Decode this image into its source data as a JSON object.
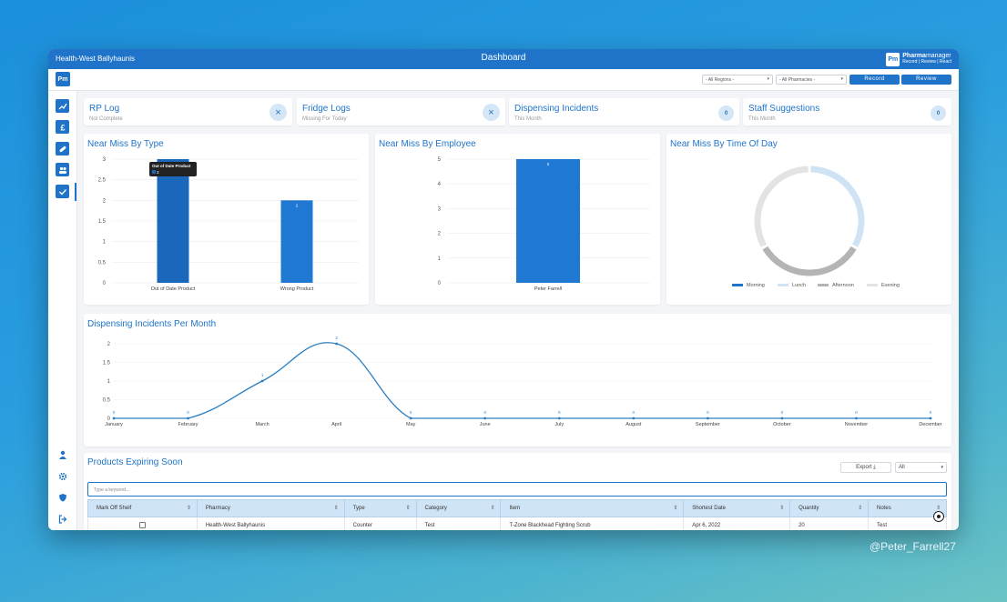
{
  "titlebar": {
    "org": "Health-West Ballyhaunis",
    "title": "Dashboard",
    "brand_logo": "Pm",
    "brand_name_bold": "Pharma",
    "brand_name_rest": "manager",
    "brand_tagline": "Record | Review | React"
  },
  "toolbar": {
    "logo": "Pm",
    "regions": "- All Regions -",
    "pharmacies": "- All Pharmacies -",
    "record": "Record",
    "review": "Review"
  },
  "sidebar": {
    "top": [
      "trend-icon",
      "pound-icon",
      "pill-icon",
      "users-icon",
      "check-icon"
    ],
    "bottom": [
      "user-icon",
      "gear-icon",
      "shield-icon",
      "logout-icon"
    ]
  },
  "stats": [
    {
      "label": "RP Log",
      "sub": "Not Complete",
      "badge": "×"
    },
    {
      "label": "Fridge Logs",
      "sub": "Missing For Today",
      "badge": "×"
    },
    {
      "label": "Dispensing Incidents",
      "sub": "This Month",
      "badge": "0"
    },
    {
      "label": "Staff Suggestions",
      "sub": "This Month",
      "badge": "0"
    }
  ],
  "near_miss_type": {
    "title": "Near Miss By Type",
    "tooltip_title": "Out of Date Product",
    "tooltip_value": "3"
  },
  "near_miss_employee": {
    "title": "Near Miss By Employee"
  },
  "near_miss_time": {
    "title": "Near Miss By Time Of Day"
  },
  "dispensing": {
    "title": "Dispensing Incidents Per Month"
  },
  "products": {
    "title": "Products Expiring Soon",
    "export": "Export",
    "filter": "All",
    "search_placeholder": "Type a keyword...",
    "columns": [
      "Mark Off Shelf",
      "Pharmacy",
      "Type",
      "Category",
      "Item",
      "Shortest Date",
      "Quantity",
      "Notes"
    ],
    "rows": [
      [
        "",
        "Health-West Ballyhaunis",
        "Counter",
        "Test",
        "T-Zone Blackhead Fighting Scrub",
        "Apr 6, 2022",
        "20",
        "Test"
      ]
    ]
  },
  "watermark": "@Peter_Farrell27",
  "chart_data": [
    {
      "type": "bar",
      "title": "Near Miss By Type",
      "categories": [
        "Out of Date Product",
        "Wrong Product"
      ],
      "values": [
        3,
        2
      ],
      "ylim": [
        0,
        3
      ],
      "yticks": [
        "0",
        "0.5",
        "1",
        "1.5",
        "2",
        "2.5",
        "3"
      ],
      "colors": [
        "#1a67bb",
        "#1f78d1"
      ]
    },
    {
      "type": "bar",
      "title": "Near Miss By Employee",
      "categories": [
        "Peter Farrell"
      ],
      "values": [
        5
      ],
      "ylim": [
        0,
        5
      ],
      "yticks": [
        "0",
        "1",
        "2",
        "3",
        "4",
        "5"
      ],
      "colors": [
        "#1f78d1"
      ]
    },
    {
      "type": "pie",
      "title": "Near Miss By Time Of Day",
      "labels": [
        "Morning",
        "Lunch",
        "Afternoon",
        "Evening"
      ],
      "values": [
        0,
        1,
        1,
        1
      ],
      "colors": [
        "#1f74c9",
        "#cfe3f5",
        "#b4b4b4",
        "#e3e3e3"
      ],
      "legend": "bottom"
    },
    {
      "type": "line",
      "title": "Dispensing Incidents Per Month",
      "categories": [
        "January",
        "February",
        "March",
        "April",
        "May",
        "June",
        "July",
        "August",
        "September",
        "October",
        "November",
        "December"
      ],
      "values": [
        0,
        0,
        1,
        2,
        0,
        0,
        0,
        0,
        0,
        0,
        0,
        0
      ],
      "ylim": [
        0,
        2
      ],
      "yticks": [
        "0",
        "0.5",
        "1",
        "1.5",
        "2"
      ],
      "color": "#2a7fc4"
    }
  ]
}
